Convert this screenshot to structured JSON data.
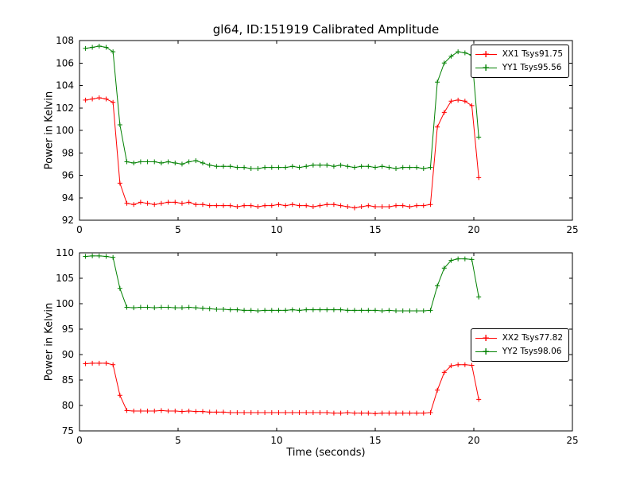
{
  "figure": {
    "title": "gl64, ID:151919 Calibrated Amplitude",
    "xlabel": "Time (seconds)",
    "ylabel_top": "Power in Kelvin",
    "ylabel_bottom": "Power in Kelvin",
    "background": "#ffffff",
    "frame_color": "#000000"
  },
  "chart_data": [
    {
      "type": "line",
      "title": "gl64, ID:151919 Calibrated Amplitude",
      "xlabel": "",
      "ylabel": "Power in Kelvin",
      "xlim": [
        0,
        25
      ],
      "ylim": [
        92,
        108
      ],
      "xticks": [
        0,
        5,
        10,
        15,
        20,
        25
      ],
      "yticks": [
        92,
        94,
        96,
        98,
        100,
        102,
        104,
        106,
        108
      ],
      "grid": false,
      "legend_position": "upper right",
      "marker": "plus",
      "x": [
        0.3,
        0.65,
        1.0,
        1.35,
        1.7,
        2.05,
        2.4,
        2.75,
        3.1,
        3.45,
        3.8,
        4.15,
        4.5,
        4.85,
        5.2,
        5.55,
        5.9,
        6.25,
        6.6,
        6.95,
        7.3,
        7.65,
        8.0,
        8.35,
        8.7,
        9.05,
        9.4,
        9.75,
        10.1,
        10.45,
        10.8,
        11.15,
        11.5,
        11.85,
        12.2,
        12.55,
        12.9,
        13.25,
        13.6,
        13.95,
        14.3,
        14.65,
        15.0,
        15.35,
        15.7,
        16.05,
        16.4,
        16.75,
        17.1,
        17.45,
        17.8,
        18.15,
        18.5,
        18.85,
        19.2,
        19.55,
        19.9,
        20.25
      ],
      "series": [
        {
          "name": "XX1 Tsys91.75",
          "color": "#ff0000",
          "values": [
            102.7,
            102.8,
            102.9,
            102.8,
            102.5,
            95.3,
            93.5,
            93.4,
            93.6,
            93.5,
            93.4,
            93.5,
            93.6,
            93.6,
            93.5,
            93.6,
            93.4,
            93.4,
            93.3,
            93.3,
            93.3,
            93.3,
            93.2,
            93.3,
            93.3,
            93.2,
            93.3,
            93.3,
            93.4,
            93.3,
            93.4,
            93.3,
            93.3,
            93.2,
            93.3,
            93.4,
            93.4,
            93.3,
            93.2,
            93.1,
            93.2,
            93.3,
            93.2,
            93.2,
            93.2,
            93.3,
            93.3,
            93.2,
            93.3,
            93.3,
            93.4,
            100.3,
            101.6,
            102.6,
            102.7,
            102.6,
            102.2,
            95.8
          ]
        },
        {
          "name": "YY1 Tsys95.56",
          "color": "#008000",
          "values": [
            107.3,
            107.4,
            107.5,
            107.4,
            107.0,
            100.5,
            97.2,
            97.1,
            97.2,
            97.2,
            97.2,
            97.1,
            97.2,
            97.1,
            97.0,
            97.2,
            97.3,
            97.1,
            96.9,
            96.8,
            96.8,
            96.8,
            96.7,
            96.7,
            96.6,
            96.6,
            96.7,
            96.7,
            96.7,
            96.7,
            96.8,
            96.7,
            96.8,
            96.9,
            96.9,
            96.9,
            96.8,
            96.9,
            96.8,
            96.7,
            96.8,
            96.8,
            96.7,
            96.8,
            96.7,
            96.6,
            96.7,
            96.7,
            96.7,
            96.6,
            96.7,
            104.3,
            106.0,
            106.6,
            107.0,
            106.9,
            106.7,
            99.4
          ]
        }
      ]
    },
    {
      "type": "line",
      "title": "",
      "xlabel": "Time (seconds)",
      "ylabel": "Power in Kelvin",
      "xlim": [
        0,
        25
      ],
      "ylim": [
        75,
        110
      ],
      "xticks": [
        0,
        5,
        10,
        15,
        20,
        25
      ],
      "yticks": [
        75,
        80,
        85,
        90,
        95,
        100,
        105,
        110
      ],
      "grid": false,
      "legend_position": "center right",
      "marker": "plus",
      "x": [
        0.3,
        0.65,
        1.0,
        1.35,
        1.7,
        2.05,
        2.4,
        2.75,
        3.1,
        3.45,
        3.8,
        4.15,
        4.5,
        4.85,
        5.2,
        5.55,
        5.9,
        6.25,
        6.6,
        6.95,
        7.3,
        7.65,
        8.0,
        8.35,
        8.7,
        9.05,
        9.4,
        9.75,
        10.1,
        10.45,
        10.8,
        11.15,
        11.5,
        11.85,
        12.2,
        12.55,
        12.9,
        13.25,
        13.6,
        13.95,
        14.3,
        14.65,
        15.0,
        15.35,
        15.7,
        16.05,
        16.4,
        16.75,
        17.1,
        17.45,
        17.8,
        18.15,
        18.5,
        18.85,
        19.2,
        19.55,
        19.9,
        20.25
      ],
      "series": [
        {
          "name": "XX2 Tsys77.82",
          "color": "#ff0000",
          "values": [
            88.2,
            88.3,
            88.3,
            88.3,
            88.0,
            82.0,
            79.0,
            78.9,
            78.9,
            78.9,
            78.9,
            79.0,
            78.9,
            78.9,
            78.8,
            78.9,
            78.8,
            78.8,
            78.7,
            78.7,
            78.7,
            78.6,
            78.6,
            78.6,
            78.6,
            78.6,
            78.6,
            78.6,
            78.6,
            78.6,
            78.6,
            78.6,
            78.6,
            78.6,
            78.6,
            78.6,
            78.5,
            78.5,
            78.6,
            78.5,
            78.5,
            78.5,
            78.4,
            78.5,
            78.5,
            78.5,
            78.5,
            78.5,
            78.5,
            78.5,
            78.6,
            83.0,
            86.5,
            87.8,
            88.0,
            88.0,
            87.9,
            81.2
          ]
        },
        {
          "name": "YY2 Tsys98.06",
          "color": "#008000",
          "values": [
            109.3,
            109.4,
            109.4,
            109.3,
            109.1,
            103.0,
            99.3,
            99.2,
            99.3,
            99.3,
            99.2,
            99.3,
            99.3,
            99.2,
            99.2,
            99.3,
            99.2,
            99.1,
            99.0,
            98.9,
            98.9,
            98.8,
            98.8,
            98.7,
            98.7,
            98.6,
            98.7,
            98.7,
            98.7,
            98.7,
            98.8,
            98.7,
            98.8,
            98.8,
            98.8,
            98.8,
            98.8,
            98.8,
            98.7,
            98.7,
            98.7,
            98.7,
            98.7,
            98.6,
            98.7,
            98.6,
            98.6,
            98.6,
            98.6,
            98.6,
            98.7,
            103.5,
            107.0,
            108.5,
            108.8,
            108.8,
            108.7,
            101.3
          ]
        }
      ]
    }
  ]
}
